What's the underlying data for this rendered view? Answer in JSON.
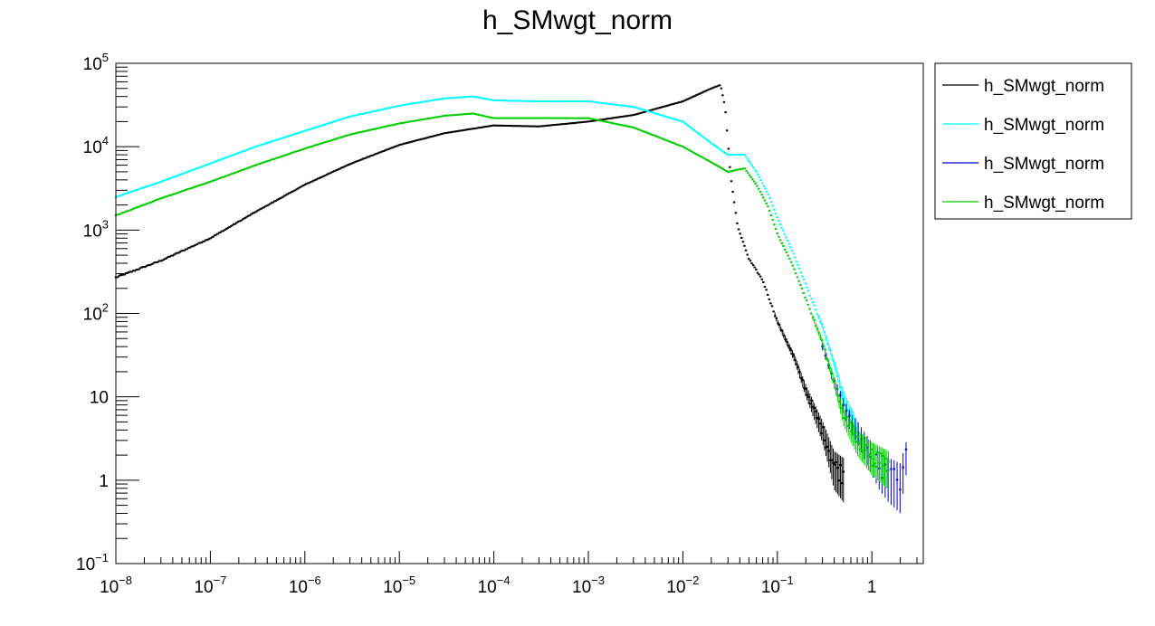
{
  "chart_data": {
    "type": "scatter",
    "title": "h_SMwgt_norm",
    "xlabel": "",
    "ylabel": "",
    "xscale": "log",
    "yscale": "log",
    "xlim": [
      1e-08,
      3.5
    ],
    "ylim": [
      0.1,
      100000
    ],
    "grid": false,
    "legend_position": "top-right, outside plot area",
    "x_ticks": [
      {
        "value": 1e-08,
        "base": "10",
        "exp": "−8"
      },
      {
        "value": 1e-07,
        "base": "10",
        "exp": "−7"
      },
      {
        "value": 1e-06,
        "base": "10",
        "exp": "−6"
      },
      {
        "value": 1e-05,
        "base": "10",
        "exp": "−5"
      },
      {
        "value": 0.0001,
        "base": "10",
        "exp": "−4"
      },
      {
        "value": 0.001,
        "base": "10",
        "exp": "−3"
      },
      {
        "value": 0.01,
        "base": "10",
        "exp": "−2"
      },
      {
        "value": 0.1,
        "base": "10",
        "exp": "−1"
      },
      {
        "value": 1,
        "base": "1",
        "exp": ""
      }
    ],
    "y_ticks": [
      {
        "value": 0.1,
        "base": "10",
        "exp": "−1"
      },
      {
        "value": 1,
        "base": "1",
        "exp": ""
      },
      {
        "value": 10,
        "base": "10",
        "exp": ""
      },
      {
        "value": 100,
        "base": "10",
        "exp": "2"
      },
      {
        "value": 1000,
        "base": "10",
        "exp": "3"
      },
      {
        "value": 10000,
        "base": "10",
        "exp": "4"
      },
      {
        "value": 100000,
        "base": "10",
        "exp": "5"
      }
    ],
    "series": [
      {
        "name": "h_SMwgt_norm",
        "color": "#000000",
        "x": [
          1e-08,
          3e-08,
          1e-07,
          3e-07,
          1e-06,
          3e-06,
          1e-05,
          3e-05,
          0.0001,
          0.0003,
          0.001,
          0.003,
          0.01,
          0.02,
          0.025,
          0.028,
          0.032,
          0.038,
          0.05,
          0.07,
          0.1,
          0.15,
          0.2,
          0.3,
          0.4,
          0.5
        ],
        "y": [
          270,
          430,
          800,
          1650,
          3500,
          6200,
          10500,
          14500,
          18000,
          17500,
          20000,
          24000,
          35000,
          50000,
          55000,
          30000,
          4500,
          1100,
          450,
          250,
          80,
          30,
          12,
          4,
          1.5,
          1.2
        ]
      },
      {
        "name": "h_SMwgt_norm",
        "color": "#00ffff",
        "x": [
          1e-08,
          3e-08,
          1e-07,
          3e-07,
          1e-06,
          3e-06,
          1e-05,
          3e-05,
          6e-05,
          0.0001,
          0.0003,
          0.001,
          0.003,
          0.01,
          0.02,
          0.03,
          0.045,
          0.06,
          0.08,
          0.1,
          0.15,
          0.2,
          0.3,
          0.4,
          0.5,
          0.7
        ],
        "y": [
          2500,
          3800,
          6300,
          10000,
          15500,
          23000,
          31000,
          38000,
          40000,
          36000,
          35000,
          35000,
          30000,
          20000,
          11000,
          8000,
          8000,
          5000,
          2700,
          1400,
          500,
          220,
          70,
          25,
          10,
          4
        ]
      },
      {
        "name": "h_SMwgt_norm",
        "color": "#0000cc",
        "x": [
          0.3,
          0.4,
          0.5,
          0.6,
          0.7,
          0.8,
          1.0,
          1.2,
          1.5,
          2.0,
          2.3
        ],
        "y": [
          40,
          15,
          8,
          5,
          4,
          3,
          2,
          1.5,
          1.2,
          1,
          2
        ]
      },
      {
        "name": "h_SMwgt_norm",
        "color": "#00cc00",
        "x": [
          1e-08,
          3e-08,
          1e-07,
          3e-07,
          1e-06,
          3e-06,
          1e-05,
          3e-05,
          6e-05,
          0.0001,
          0.0003,
          0.001,
          0.003,
          0.01,
          0.02,
          0.03,
          0.045,
          0.06,
          0.08,
          0.1,
          0.15,
          0.2,
          0.3,
          0.4,
          0.5,
          0.7,
          1.0,
          1.5
        ],
        "y": [
          1500,
          2400,
          3800,
          6000,
          9500,
          14000,
          19000,
          23500,
          25000,
          22000,
          22000,
          22000,
          17000,
          10000,
          6500,
          5000,
          5500,
          3500,
          1900,
          900,
          350,
          150,
          45,
          15,
          6,
          3,
          2,
          1.5
        ]
      }
    ]
  }
}
